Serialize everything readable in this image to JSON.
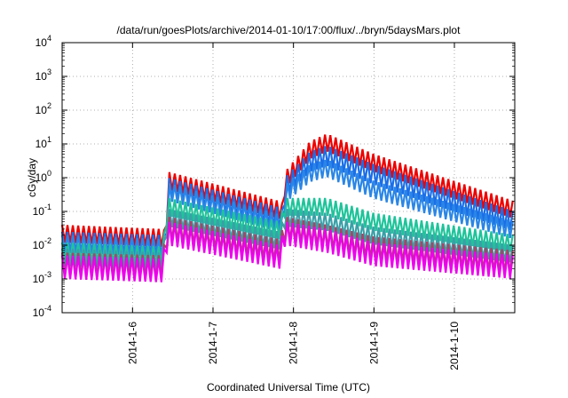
{
  "chart_data": {
    "type": "line",
    "title": "/data/run/goesPlots/archive/2014-01-10/17:00/flux/../bryn/5daysMars.plot",
    "xlabel": "Coordinated Universal Time (UTC)",
    "ylabel": "cGy/day",
    "x_domain": [
      "2014-01-05 03:00",
      "2014-01-10 18:00"
    ],
    "yscale": "log",
    "ylim": [
      0.0001,
      10000
    ],
    "y_ticks": [
      {
        "base": "10",
        "exp": "-4",
        "value": 0.0001
      },
      {
        "base": "10",
        "exp": "-3",
        "value": 0.001
      },
      {
        "base": "10",
        "exp": "-2",
        "value": 0.01
      },
      {
        "base": "10",
        "exp": "-1",
        "value": 0.1
      },
      {
        "base": "10",
        "exp": "0",
        "value": 1
      },
      {
        "base": "10",
        "exp": "1",
        "value": 10
      },
      {
        "base": "10",
        "exp": "2",
        "value": 100
      },
      {
        "base": "10",
        "exp": "3",
        "value": 1000
      },
      {
        "base": "10",
        "exp": "4",
        "value": 10000
      }
    ],
    "x_ticks": [
      {
        "label": "2014-1-6",
        "value": "2014-01-06"
      },
      {
        "label": "2014-1-7",
        "value": "2014-01-07"
      },
      {
        "label": "2014-1-8",
        "value": "2014-01-08"
      },
      {
        "label": "2014-1-9",
        "value": "2014-01-09"
      },
      {
        "label": "2014-1-10",
        "value": "2014-01-10"
      }
    ],
    "grid": true,
    "sawtooth_period_hours": 1.6,
    "series": [
      {
        "color": "#ee0000",
        "points": [
          [
            "2014-01-05 03:00",
            0.04
          ],
          [
            "2014-01-06 09:00",
            0.03
          ],
          [
            "2014-01-06 10:00",
            0.025
          ],
          [
            "2014-01-06 10:30",
            1.5
          ],
          [
            "2014-01-07 20:00",
            0.2
          ],
          [
            "2014-01-07 21:00",
            0.15
          ],
          [
            "2014-01-07 21:30",
            1.5
          ],
          [
            "2014-01-08 05:00",
            12
          ],
          [
            "2014-01-08 10:00",
            20
          ],
          [
            "2014-01-09 00:00",
            5
          ],
          [
            "2014-01-10 18:00",
            0.2
          ]
        ],
        "trough_factor": 0.3
      },
      {
        "color": "#1a6ee8",
        "points": [
          [
            "2014-01-05 03:00",
            0.025
          ],
          [
            "2014-01-06 09:00",
            0.02
          ],
          [
            "2014-01-06 10:00",
            0.018
          ],
          [
            "2014-01-06 10:30",
            1.0
          ],
          [
            "2014-01-07 20:00",
            0.13
          ],
          [
            "2014-01-07 21:00",
            0.1
          ],
          [
            "2014-01-07 21:30",
            1.0
          ],
          [
            "2014-01-08 05:00",
            6
          ],
          [
            "2014-01-08 10:00",
            9
          ],
          [
            "2014-01-09 00:00",
            2.5
          ],
          [
            "2014-01-10 18:00",
            0.1
          ]
        ],
        "trough_factor": 0.25
      },
      {
        "color": "#2a86e6",
        "points": [
          [
            "2014-01-05 03:00",
            0.02
          ],
          [
            "2014-01-06 09:00",
            0.015
          ],
          [
            "2014-01-06 10:00",
            0.012
          ],
          [
            "2014-01-06 10:30",
            0.7
          ],
          [
            "2014-01-07 20:00",
            0.08
          ],
          [
            "2014-01-07 21:00",
            0.06
          ],
          [
            "2014-01-07 21:30",
            0.6
          ],
          [
            "2014-01-08 05:00",
            2.5
          ],
          [
            "2014-01-08 10:00",
            3.5
          ],
          [
            "2014-01-09 00:00",
            0.8
          ],
          [
            "2014-01-10 18:00",
            0.05
          ]
        ],
        "trough_factor": 0.3
      },
      {
        "color": "#1fc49a",
        "points": [
          [
            "2014-01-05 03:00",
            0.012
          ],
          [
            "2014-01-06 09:00",
            0.009
          ],
          [
            "2014-01-06 10:30",
            0.25
          ],
          [
            "2014-01-07 20:00",
            0.05
          ],
          [
            "2014-01-07 21:30",
            0.25
          ],
          [
            "2014-01-08 10:00",
            0.25
          ],
          [
            "2014-01-09 00:00",
            0.09
          ],
          [
            "2014-01-10 18:00",
            0.02
          ]
        ],
        "trough_factor": 0.3
      },
      {
        "color": "#3aa0a8",
        "points": [
          [
            "2014-01-05 03:00",
            0.008
          ],
          [
            "2014-01-06 09:00",
            0.006
          ],
          [
            "2014-01-06 10:30",
            0.12
          ],
          [
            "2014-01-07 20:00",
            0.025
          ],
          [
            "2014-01-07 21:30",
            0.12
          ],
          [
            "2014-01-08 10:00",
            0.09
          ],
          [
            "2014-01-09 00:00",
            0.035
          ],
          [
            "2014-01-10 18:00",
            0.01
          ]
        ],
        "trough_factor": 0.3
      },
      {
        "color": "#aa4466",
        "points": [
          [
            "2014-01-05 03:00",
            0.006
          ],
          [
            "2014-01-06 09:00",
            0.005
          ],
          [
            "2014-01-06 10:30",
            0.07
          ],
          [
            "2014-01-07 20:00",
            0.015
          ],
          [
            "2014-01-07 21:30",
            0.07
          ],
          [
            "2014-01-08 10:00",
            0.04
          ],
          [
            "2014-01-09 00:00",
            0.018
          ],
          [
            "2014-01-10 18:00",
            0.007
          ]
        ],
        "trough_factor": 0.2
      },
      {
        "color": "#ee00ee",
        "points": [
          [
            "2014-01-05 03:00",
            0.005
          ],
          [
            "2014-01-06 09:00",
            0.004
          ],
          [
            "2014-01-06 10:30",
            0.05
          ],
          [
            "2014-01-07 20:00",
            0.01
          ],
          [
            "2014-01-07 21:30",
            0.05
          ],
          [
            "2014-01-08 10:00",
            0.03
          ],
          [
            "2014-01-09 00:00",
            0.012
          ],
          [
            "2014-01-10 18:00",
            0.005
          ]
        ],
        "trough_factor": 0.2
      }
    ]
  }
}
